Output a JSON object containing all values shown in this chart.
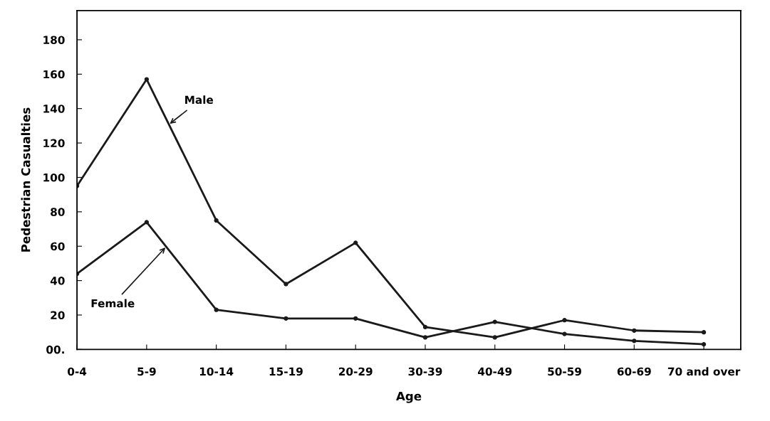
{
  "chart_data": {
    "type": "line",
    "xlabel": "Age",
    "ylabel": "Pedestrian Casualties",
    "categories": [
      "0-4",
      "5-9",
      "10-14",
      "15-19",
      "20-29",
      "30-39",
      "40-49",
      "50-59",
      "60-69",
      "70 and over"
    ],
    "series": [
      {
        "name": "Male",
        "color": "#1a1a1a",
        "values": [
          95,
          157,
          75,
          38,
          62,
          13,
          7,
          17,
          11,
          10
        ]
      },
      {
        "name": "Female",
        "color": "#1a1a1a",
        "values": [
          44,
          74,
          23,
          18,
          18,
          7,
          16,
          9,
          5,
          3
        ]
      }
    ],
    "ylim": [
      0,
      197
    ],
    "yticks": [
      {
        "value": 0,
        "label": "00."
      },
      20,
      40,
      60,
      80,
      100,
      120,
      140,
      160,
      180
    ],
    "marker": "circle",
    "line_style": "solid",
    "grid": false,
    "legend": false
  }
}
